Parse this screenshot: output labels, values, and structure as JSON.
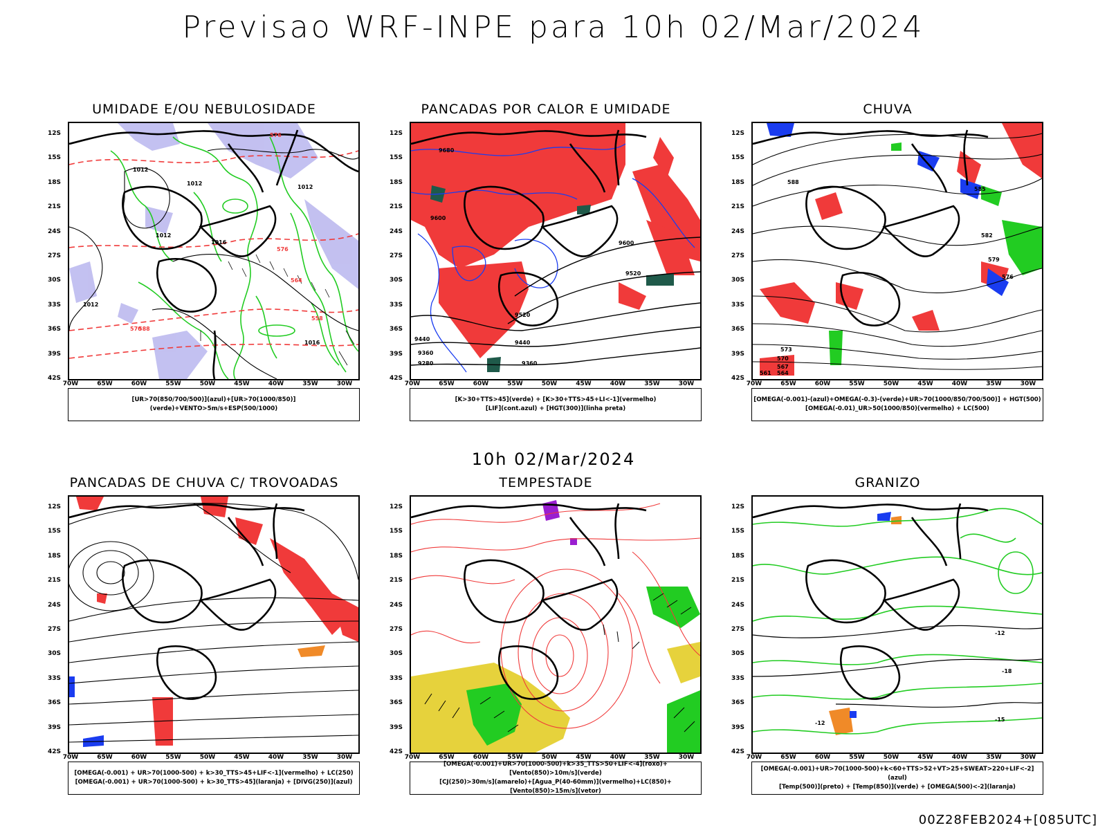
{
  "header": {
    "title": "Previsao WRF-INPE  para 10h 02/Mar/2024"
  },
  "mid_time": "10h 02/Mar/2024",
  "footer": "00Z28FEB2024+[085UTC]",
  "axes": {
    "lat_labels": [
      "12S",
      "15S",
      "18S",
      "21S",
      "24S",
      "27S",
      "30S",
      "33S",
      "36S",
      "39S",
      "42S"
    ],
    "lon_labels": [
      "70W",
      "65W",
      "60W",
      "55W",
      "50W",
      "45W",
      "40W",
      "35W",
      "30W"
    ]
  },
  "colors": {
    "red": "#f03a3a",
    "green": "#22cc22",
    "blue": "#1a3cf0",
    "lavender": "#b9b6ee",
    "yellow": "#e6d23c",
    "orange": "#f08a28",
    "purple": "#9a1fd0",
    "darkgreen": "#1f5a4a"
  },
  "panels": [
    {
      "title": "UMIDADE E/OU NEBULOSIDADE",
      "legend": [
        "[UR>70(850/700/500)](azul)+[UR>70(1000/850)](verde)+VENTO>5m/s+ESP(500/1000)"
      ]
    },
    {
      "title": "PANCADAS POR CALOR E UMIDADE",
      "legend": [
        "[K>30+TTS>45](verde) + [K>30+TTS>45+LI<-1](vermelho)",
        "[LIF](cont.azul) + [HGT(300)](linha preta)"
      ]
    },
    {
      "title": "CHUVA",
      "legend": [
        "[OMEGA(-0.001)-(azul)+OMEGA(-0.3)-(verde)+UR>70(1000/850/700/500)] + HGT(500)",
        "[OMEGA(-0.01)_UR>50(1000/850)(vermelho) + LC(500)"
      ]
    },
    {
      "title": "PANCADAS DE CHUVA C/ TROVOADAS",
      "legend": [
        "[OMEGA(-0.001) + UR>70(1000-500) + k>30_TTS>45+LIF<-1](vermelho) + LC(250)",
        "[OMEGA(-0.001) + UR>70(1000-500) + k>30_TTS>45](laranja) + [DIVG(250)](azul)"
      ]
    },
    {
      "title": "TEMPESTADE",
      "legend": [
        "[OMEGA(-0.001)+UR>70(1000-500)+k>35_TTS>50+LIF<-4](roxo)+[Vento(850)>10m/s](verde)",
        "[CJ(250)>30m/s](amarelo)+[Agua_P(40-60mm)](vermelho)+LC(850)+[Vento(850)>15m/s](vetor)"
      ]
    },
    {
      "title": "GRANIZO",
      "legend": [
        "[OMEGA(-0.001)+UR>70(1000-500)+k<60+TTS>52+VT>25+SWEAT>220+LIF<-2](azul)",
        "[Temp(500)](preto) + [Temp(850)](verde) + [OMEGA(500)<-2](laranja)"
      ]
    }
  ],
  "contour_labels": {
    "p1": [
      "1012",
      "1012",
      "1012",
      "1012",
      "1016",
      "1016",
      "1012",
      "576",
      "576",
      "564",
      "558",
      "588",
      "570"
    ],
    "p2": [
      "9680",
      "9600",
      "9520",
      "9440",
      "9360",
      "9280",
      "9600",
      "9520",
      "9440",
      "9360"
    ],
    "p3": [
      "588",
      "585",
      "582",
      "579",
      "576",
      "573",
      "570",
      "567",
      "564",
      "561"
    ],
    "p6": [
      "-12",
      "-15",
      "-18",
      "-12"
    ]
  }
}
